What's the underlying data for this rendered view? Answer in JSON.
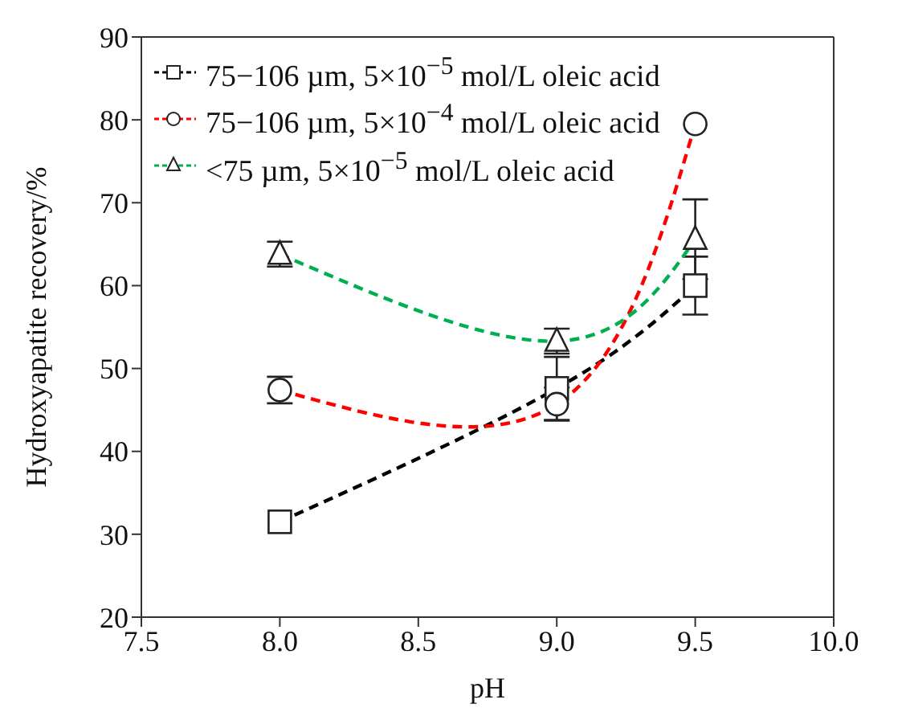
{
  "chart_data": {
    "type": "line",
    "xlabel": "pH",
    "ylabel": "Hydroxyapatite recovery/%",
    "x": [
      8.0,
      9.0,
      9.5
    ],
    "xlim": [
      7.5,
      10.0
    ],
    "xticks": [
      {
        "value": 7.5,
        "label": "7.5"
      },
      {
        "value": 8,
        "label": "8.0"
      },
      {
        "value": 8.5,
        "label": "8.5"
      },
      {
        "value": 9,
        "label": "9.0"
      },
      {
        "value": 9.5,
        "label": "9.5"
      },
      {
        "value": 10,
        "label": "10.0"
      }
    ],
    "ylim": [
      20,
      90
    ],
    "yticks": [
      20,
      30,
      40,
      50,
      60,
      70,
      80,
      90
    ],
    "grid": false,
    "legend": "top left",
    "line_style": "dashed",
    "series": [
      {
        "name": "75−106 µm, 5×10$^{−5}$ mol/L oleic acid",
        "color": "#000000",
        "marker": "square",
        "values": [
          31.5,
          47.6,
          60.0
        ],
        "errors": [
          null,
          3.8,
          3.5
        ]
      },
      {
        "name": "75−106 µm, 5×10$^{−4}$ mol/L oleic acid",
        "color": "#ff0000",
        "marker": "circle",
        "values": [
          47.4,
          45.7,
          79.5
        ],
        "errors": [
          1.6,
          2.0,
          null
        ]
      },
      {
        "name": "<75 µm, 5×10$^{−5}$ mol/L oleic acid",
        "color": "#00b050",
        "marker": "triangle",
        "values": [
          63.8,
          53.3,
          65.6
        ],
        "errors": [
          1.5,
          1.5,
          4.8
        ]
      }
    ]
  }
}
